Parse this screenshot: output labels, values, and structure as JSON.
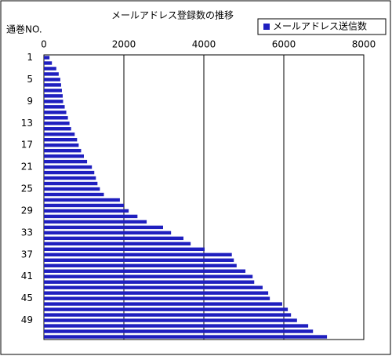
{
  "chart_data": {
    "type": "bar",
    "orientation": "horizontal",
    "title": "メールアドレス登録数の推移",
    "y_axis_label": "通巻NO.",
    "categories": [
      "1",
      null,
      null,
      null,
      "5",
      null,
      null,
      null,
      "9",
      null,
      null,
      null,
      "13",
      null,
      null,
      null,
      "17",
      null,
      null,
      null,
      "21",
      null,
      null,
      null,
      "25",
      null,
      null,
      null,
      "29",
      null,
      null,
      null,
      "33",
      null,
      null,
      null,
      "37",
      null,
      null,
      null,
      "41",
      null,
      null,
      null,
      "45",
      null,
      null,
      null,
      "49",
      null,
      null,
      null
    ],
    "series": [
      {
        "name": "メールアドレス送信数",
        "color": "#1f1fbf",
        "values": [
          140,
          200,
          310,
          370,
          410,
          430,
          450,
          470,
          480,
          520,
          560,
          600,
          640,
          680,
          770,
          830,
          870,
          930,
          1000,
          1080,
          1200,
          1260,
          1300,
          1340,
          1400,
          1500,
          1900,
          2000,
          2120,
          2340,
          2570,
          2980,
          3180,
          3490,
          3670,
          4020,
          4700,
          4750,
          4820,
          5040,
          5220,
          5260,
          5470,
          5610,
          5650,
          5960,
          6100,
          6180,
          6330,
          6610,
          6730,
          7080
        ]
      }
    ],
    "xlim": [
      0,
      8000
    ],
    "xticks": [
      0,
      2000,
      4000,
      6000,
      8000
    ],
    "grid": true,
    "legend": "top-right"
  }
}
